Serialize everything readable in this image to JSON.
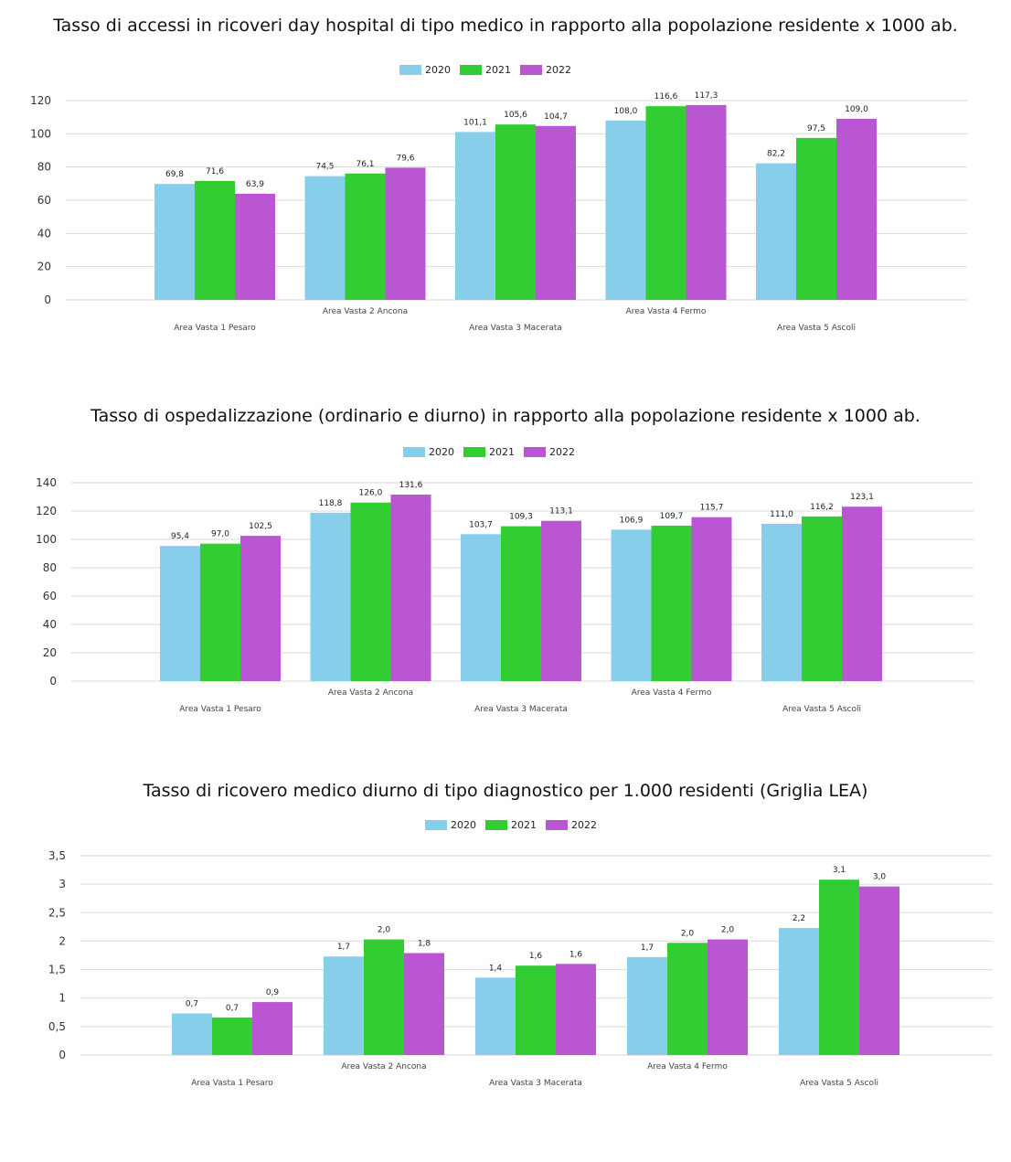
{
  "colors": {
    "2020": "#87CEEB",
    "2021": "#32CD32",
    "2022": "#BA55D3",
    "grid": "#d9d9d9"
  },
  "chart_data": [
    {
      "type": "bar",
      "title": "Tasso di accessi in ricoveri day hospital di tipo medico in rapporto alla popolazione residente x 1000 ab.",
      "categories": [
        "Area Vasta 1 Pesaro",
        "Area Vasta 2 Ancona",
        "Area Vasta 3 Macerata",
        "Area Vasta 4 Fermo",
        "Area Vasta 5 Ascoli"
      ],
      "series": [
        {
          "name": "2020",
          "values": [
            69.8,
            74.5,
            101.1,
            108.0,
            82.2
          ],
          "labels": [
            "69,8",
            "74,5",
            "101,1",
            "108,0",
            "82,2"
          ]
        },
        {
          "name": "2021",
          "values": [
            71.6,
            76.1,
            105.6,
            116.6,
            97.5
          ],
          "labels": [
            "71,6",
            "76,1",
            "105,6",
            "116,6",
            "97,5"
          ]
        },
        {
          "name": "2022",
          "values": [
            63.9,
            79.6,
            104.7,
            117.3,
            109.0
          ],
          "labels": [
            "63,9",
            "79,6",
            "104,7",
            "117,3",
            "109,0"
          ]
        }
      ],
      "yticks": [
        "0",
        "20",
        "40",
        "60",
        "80",
        "100",
        "120"
      ],
      "ylim": [
        0,
        120
      ],
      "legend": "top-center",
      "grid": true
    },
    {
      "type": "bar",
      "title": "Tasso di ospedalizzazione (ordinario e diurno) in rapporto alla popolazione residente x 1000 ab.",
      "categories": [
        "Area Vasta 1 Pesaro",
        "Area Vasta 2 Ancona",
        "Area Vasta 3 Macerata",
        "Area Vasta 4 Fermo",
        "Area Vasta 5 Ascoli"
      ],
      "series": [
        {
          "name": "2020",
          "values": [
            95.4,
            118.8,
            103.7,
            106.9,
            111.0
          ],
          "labels": [
            "95,4",
            "118,8",
            "103,7",
            "106,9",
            "111,0"
          ]
        },
        {
          "name": "2021",
          "values": [
            97.0,
            126.0,
            109.3,
            109.7,
            116.2
          ],
          "labels": [
            "97,0",
            "126,0",
            "109,3",
            "109,7",
            "116,2"
          ]
        },
        {
          "name": "2022",
          "values": [
            102.5,
            131.6,
            113.1,
            115.7,
            123.1
          ],
          "labels": [
            "102,5",
            "131,6",
            "113,1",
            "115,7",
            "123,1"
          ]
        }
      ],
      "yticks": [
        "0",
        "20",
        "40",
        "60",
        "80",
        "100",
        "120",
        "140"
      ],
      "ylim": [
        0,
        140
      ],
      "legend": "top-center",
      "grid": true
    },
    {
      "type": "bar",
      "title": "Tasso di ricovero medico diurno di tipo diagnostico per 1.000 residenti (Griglia LEA)",
      "categories": [
        "Area Vasta 1 Pesaro",
        "Area Vasta 2 Ancona",
        "Area Vasta 3 Macerata",
        "Area Vasta 4 Fermo",
        "Area Vasta 5 Ascoli"
      ],
      "series": [
        {
          "name": "2020",
          "values": [
            0.73,
            1.73,
            1.36,
            1.72,
            2.23
          ],
          "labels": [
            "0,7",
            "1,7",
            "1,4",
            "1,7",
            "2,2"
          ]
        },
        {
          "name": "2021",
          "values": [
            0.66,
            2.03,
            1.57,
            1.97,
            3.08
          ],
          "labels": [
            "0,7",
            "2,0",
            "1,6",
            "2,0",
            "3,1"
          ]
        },
        {
          "name": "2022",
          "values": [
            0.93,
            1.79,
            1.6,
            2.03,
            2.96
          ],
          "labels": [
            "0,9",
            "1,8",
            "1,6",
            "2,0",
            "3,0"
          ]
        }
      ],
      "yticks": [
        "0",
        "0,5",
        "1",
        "1,5",
        "2",
        "2,5",
        "3",
        "3,5"
      ],
      "ylim": [
        0,
        3.5
      ],
      "legend": "top-center",
      "grid": true
    }
  ]
}
